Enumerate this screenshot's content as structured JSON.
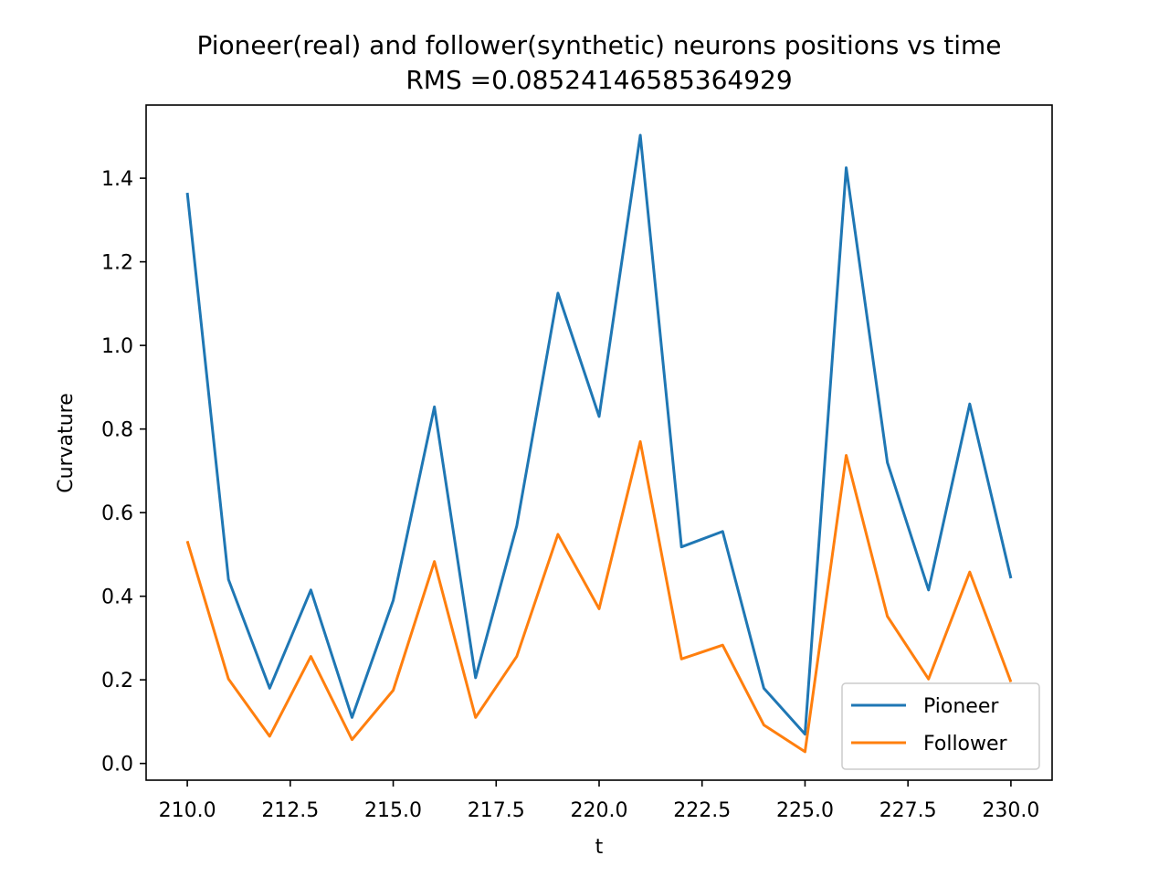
{
  "chart_data": {
    "type": "line",
    "title": "Pioneer(real) and follower(synthetic) neurons positions vs time",
    "subtitle": "RMS =0.08524146585364929",
    "xlabel": "t",
    "ylabel": "Curvature",
    "xlim": [
      209.0,
      231.0
    ],
    "ylim": [
      -0.04,
      1.575
    ],
    "x_ticks": [
      210.0,
      212.5,
      215.0,
      217.5,
      220.0,
      222.5,
      225.0,
      227.5,
      230.0
    ],
    "x_tick_labels": [
      "210.0",
      "212.5",
      "215.0",
      "217.5",
      "220.0",
      "222.5",
      "225.0",
      "227.5",
      "230.0"
    ],
    "y_ticks": [
      0.0,
      0.2,
      0.4,
      0.6,
      0.8,
      1.0,
      1.2,
      1.4
    ],
    "y_tick_labels": [
      "0.0",
      "0.2",
      "0.4",
      "0.6",
      "0.8",
      "1.0",
      "1.2",
      "1.4"
    ],
    "legend_position": "lower-right",
    "grid": false,
    "x": [
      210,
      211,
      212,
      213,
      214,
      215,
      216,
      217,
      218,
      219,
      220,
      221,
      222,
      223,
      224,
      225,
      226,
      227,
      228,
      229,
      230
    ],
    "series": [
      {
        "name": "Pioneer",
        "color": "#1f77b4",
        "values": [
          1.365,
          0.44,
          0.18,
          0.415,
          0.11,
          0.39,
          0.853,
          0.205,
          0.568,
          1.125,
          0.83,
          1.503,
          0.518,
          0.555,
          0.18,
          0.07,
          1.425,
          0.72,
          0.415,
          0.86,
          0.443
        ]
      },
      {
        "name": "Follower",
        "color": "#ff7f0e",
        "values": [
          0.532,
          0.202,
          0.065,
          0.256,
          0.057,
          0.175,
          0.483,
          0.11,
          0.256,
          0.548,
          0.37,
          0.77,
          0.25,
          0.283,
          0.092,
          0.028,
          0.737,
          0.352,
          0.202,
          0.458,
          0.195
        ]
      }
    ]
  }
}
